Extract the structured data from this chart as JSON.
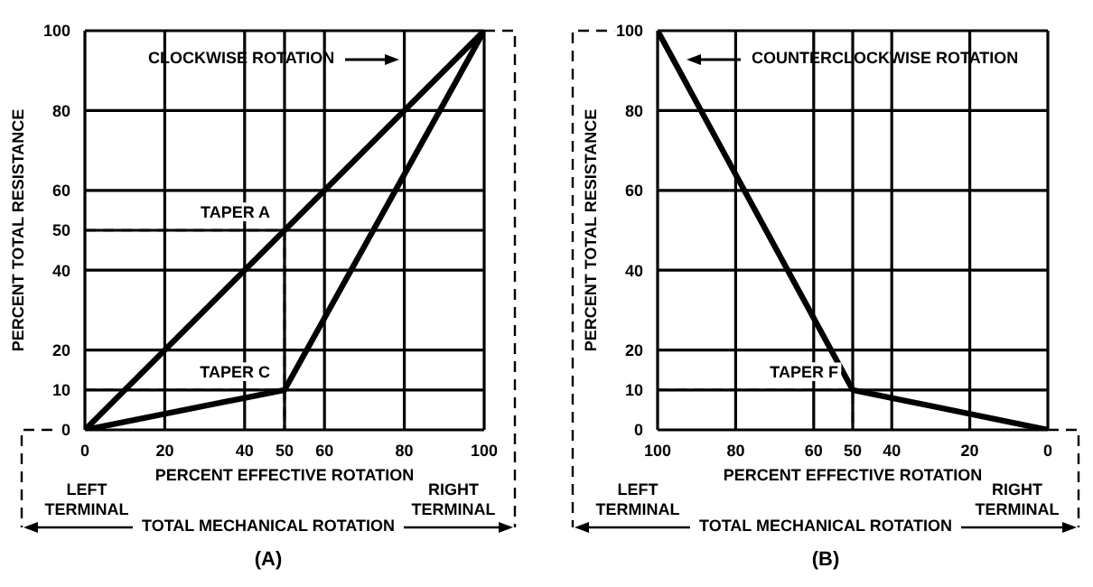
{
  "chart_data": [
    {
      "type": "line",
      "xlabel": "PERCENT EFFECTIVE ROTATION",
      "ylabel": "PERCENT TOTAL RESISTANCE",
      "xlim": [
        0,
        100
      ],
      "xticks": [
        0,
        20,
        40,
        50,
        60,
        80,
        100
      ],
      "ylim": [
        0,
        100
      ],
      "yticks": [
        0,
        10,
        20,
        40,
        50,
        60,
        80,
        100
      ],
      "grid": true,
      "marker": "none",
      "series": [
        {
          "name": "TAPER A",
          "color": "#000000",
          "x": [
            0,
            50,
            100
          ],
          "values": [
            0,
            50,
            100
          ]
        },
        {
          "name": "TAPER C",
          "color": "#000000",
          "x": [
            0,
            50,
            100
          ],
          "values": [
            0,
            10,
            100
          ]
        },
        {
          "type": "line",
          "color": "#000000",
          "line_style": "dashed",
          "x": [
            0,
            50,
            50
          ],
          "values": [
            50,
            50,
            0
          ]
        },
        {
          "type": "line",
          "color": "#000000",
          "line_style": "dashed",
          "x": [
            0,
            50,
            50
          ],
          "values": [
            10,
            10,
            0
          ]
        }
      ],
      "annotations": [
        "CLOCKWISE ROTATION",
        "LEFT TERMINAL",
        "RIGHT TERMINAL",
        "TOTAL MECHANICAL ROTATION",
        "(A)"
      ]
    },
    {
      "type": "line",
      "xlabel": "PERCENT EFFECTIVE ROTATION",
      "ylabel": "PERCENT TOTAL RESISTANCE",
      "xlim": [
        100,
        0
      ],
      "xticks": [
        100,
        80,
        60,
        50,
        40,
        20,
        0
      ],
      "ylim": [
        0,
        100
      ],
      "yticks": [
        0,
        10,
        20,
        40,
        60,
        80,
        100
      ],
      "grid": true,
      "marker": "none",
      "series": [
        {
          "name": "TAPER F",
          "color": "#000000",
          "x": [
            100,
            50,
            0
          ],
          "values": [
            100,
            10,
            0
          ]
        },
        {
          "type": "line",
          "color": "#000000",
          "line_style": "dashed",
          "x": [
            100,
            50,
            50
          ],
          "values": [
            10,
            10,
            0
          ]
        }
      ],
      "annotations": [
        "COUNTERCLOCKWISE ROTATION",
        "LEFT TERMINAL",
        "RIGHT TERMINAL",
        "TOTAL MECHANICAL ROTATION",
        "(B)"
      ]
    }
  ]
}
